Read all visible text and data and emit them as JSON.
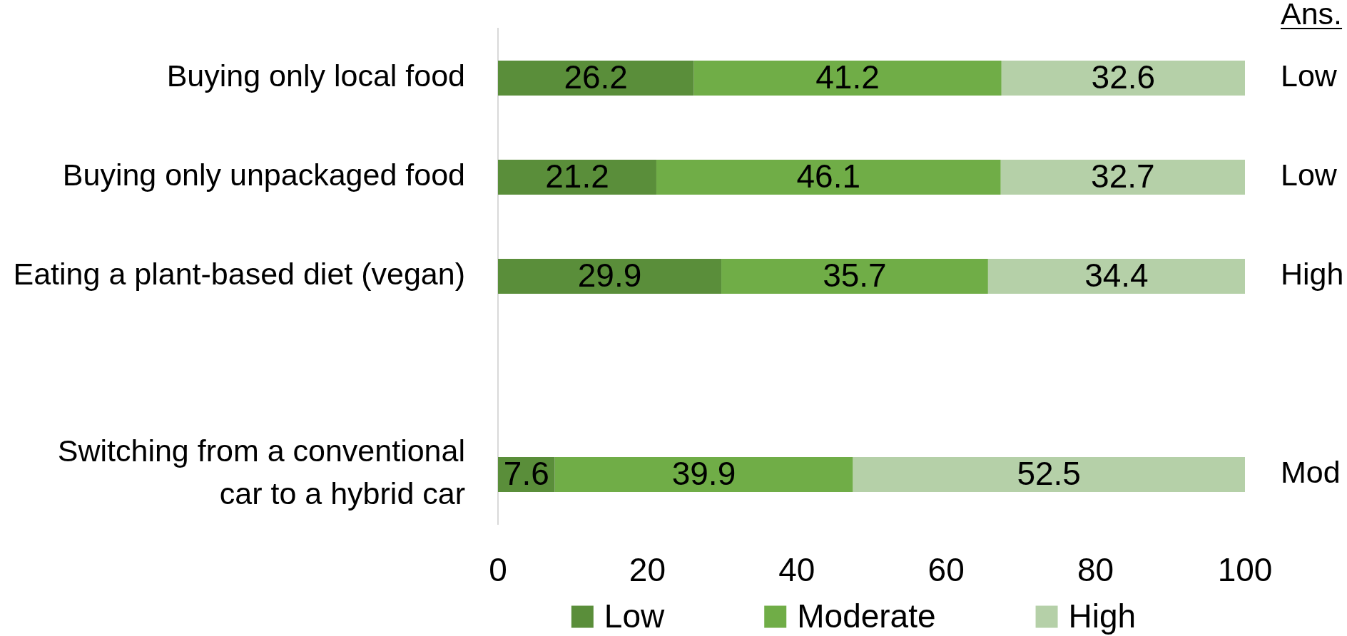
{
  "chart_data": {
    "type": "bar",
    "orientation": "horizontal",
    "stacked": true,
    "categories": [
      "Buying only local food",
      "Buying only unpackaged food",
      "Eating a plant-based diet (vegan)",
      null,
      "Switching from a conventional car to a hybrid car"
    ],
    "series": [
      {
        "name": "Low",
        "color": "#5a8e3a",
        "values": [
          26.2,
          21.2,
          29.9,
          null,
          7.6
        ]
      },
      {
        "name": "Moderate",
        "color": "#70ad47",
        "values": [
          41.2,
          46.1,
          35.7,
          null,
          39.9
        ]
      },
      {
        "name": "High",
        "color": "#b5d0a8",
        "values": [
          32.6,
          32.7,
          34.4,
          null,
          52.5
        ]
      }
    ],
    "xlim": [
      0,
      100
    ],
    "xticks": [
      0,
      20,
      40,
      60,
      80,
      100
    ],
    "data_labels": true,
    "legend": "bottom",
    "annotations": [
      "Ans.",
      "Low",
      "Low",
      "High",
      "Mod"
    ]
  }
}
